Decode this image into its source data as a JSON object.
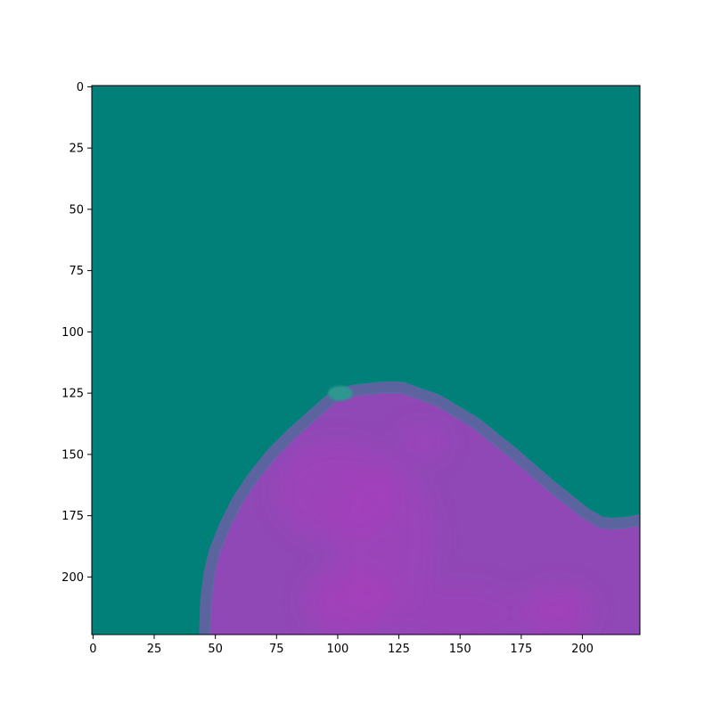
{
  "chart_data": {
    "type": "heatmap",
    "title": "",
    "xlabel": "",
    "ylabel": "",
    "xlim": [
      0,
      224
    ],
    "ylim": [
      224,
      0
    ],
    "x_ticks": [
      0,
      25,
      50,
      75,
      100,
      125,
      150,
      175,
      200
    ],
    "y_ticks": [
      0,
      25,
      50,
      75,
      100,
      125,
      150,
      175,
      200
    ],
    "grid": false,
    "colors": {
      "background": "#017f79",
      "region_edge": "#6b5fa6",
      "region_fill": "#9048b6",
      "region_highlight": "#ab3cbd",
      "artifact": "#2f9790"
    },
    "region_boundary": [
      [
        48,
        224
      ],
      [
        48.5,
        210
      ],
      [
        50,
        198
      ],
      [
        52,
        190
      ],
      [
        56,
        180
      ],
      [
        61,
        170
      ],
      [
        67,
        161
      ],
      [
        75,
        151
      ],
      [
        83,
        143
      ],
      [
        92,
        135
      ],
      [
        100,
        128
      ],
      [
        108,
        126
      ],
      [
        118,
        125
      ],
      [
        126,
        125
      ],
      [
        140,
        130
      ],
      [
        155,
        139
      ],
      [
        170,
        151
      ],
      [
        185,
        164
      ],
      [
        200,
        176
      ],
      [
        207,
        180
      ],
      [
        212,
        180.5
      ],
      [
        219,
        180
      ],
      [
        224,
        179
      ],
      [
        224,
        224
      ]
    ],
    "artifact_blob": {
      "x": 101,
      "y": 125,
      "rx": 5,
      "ry": 3
    },
    "highlight_blobs": [
      {
        "x": 100,
        "y": 165,
        "rx": 25,
        "ry": 20,
        "strength": 0.5
      },
      {
        "x": 120,
        "y": 185,
        "rx": 20,
        "ry": 30,
        "strength": 0.4
      },
      {
        "x": 105,
        "y": 210,
        "rx": 18,
        "ry": 14,
        "strength": 0.6
      },
      {
        "x": 190,
        "y": 214,
        "rx": 14,
        "ry": 10,
        "strength": 0.6
      },
      {
        "x": 150,
        "y": 215,
        "rx": 25,
        "ry": 12,
        "strength": 0.3
      },
      {
        "x": 135,
        "y": 145,
        "rx": 10,
        "ry": 7,
        "strength": 0.4
      }
    ]
  }
}
